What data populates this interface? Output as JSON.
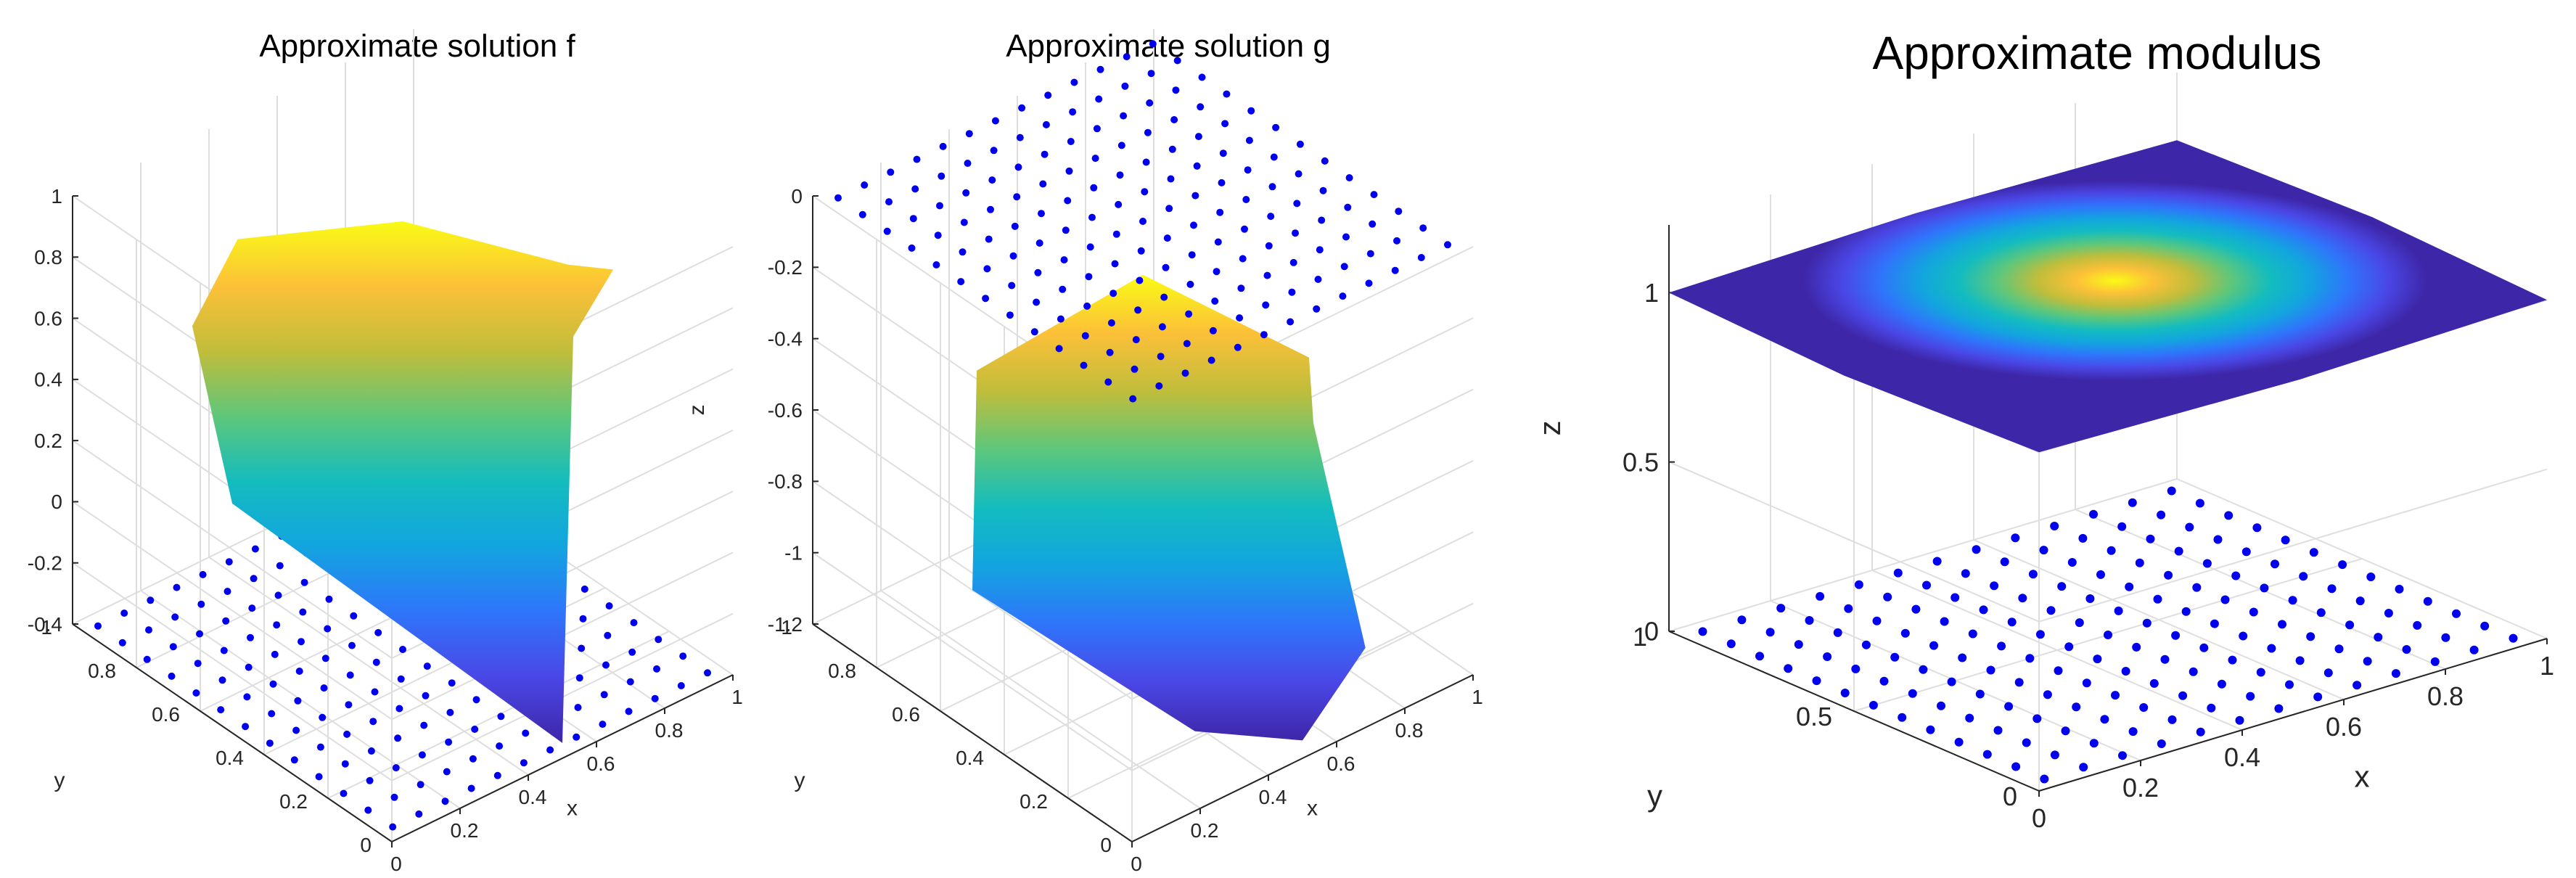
{
  "colors": {
    "marker": "#0000ee",
    "colormap": [
      "#3e26a8",
      "#4a47e6",
      "#2f75fb",
      "#13a4e0",
      "#13bcbf",
      "#5dc77b",
      "#c0bd3b",
      "#fcc038",
      "#f9fb15"
    ],
    "grid": "#dedede",
    "axis": "#262626"
  },
  "chart_data": [
    {
      "type": "surface",
      "title": "Approximate solution f",
      "xlabel": "x",
      "ylabel": "y",
      "zlabel": "z",
      "xlim": [
        0,
        1
      ],
      "ylim": [
        0,
        1
      ],
      "zlim": [
        -0.4,
        1
      ],
      "x_ticks": [
        "0",
        "0.2",
        "0.4",
        "0.6",
        "0.8",
        "1"
      ],
      "y_ticks": [
        "0",
        "0.2",
        "0.4",
        "0.6",
        "0.8",
        "1"
      ],
      "z_ticks": [
        "-0.4",
        "-0.2",
        "0",
        "0.2",
        "0.4",
        "0.6",
        "0.8",
        "1"
      ],
      "surface_boundary": [
        {
          "x": 0.5,
          "y": 0.5,
          "z": 1.0
        },
        {
          "x": 0.75,
          "y": 0.25,
          "z": 0.9
        },
        {
          "x": 0.93,
          "y": 0.3,
          "z": 0.75
        },
        {
          "x": 1.0,
          "y": 0.5,
          "z": 0.35
        },
        {
          "x": 0.5,
          "y": 0.0,
          "z": -0.35
        },
        {
          "x": 0.0,
          "y": 0.5,
          "z": 0.35
        },
        {
          "x": 0.07,
          "y": 0.7,
          "z": 0.75
        },
        {
          "x": 0.25,
          "y": 0.75,
          "z": 0.9
        }
      ],
      "markers_z": -0.4,
      "marker_grid_n": 13,
      "marker_shape": "circular disc",
      "grid": true
    },
    {
      "type": "surface",
      "title": "Approximate solution g",
      "xlabel": "x",
      "ylabel": "y",
      "zlabel": "z",
      "xlim": [
        0,
        1
      ],
      "ylim": [
        0,
        1
      ],
      "zlim": [
        -1.2,
        0
      ],
      "x_ticks": [
        "0",
        "0.2",
        "0.4",
        "0.6",
        "0.8",
        "1"
      ],
      "y_ticks": [
        "0",
        "0.2",
        "0.4",
        "0.6",
        "0.8",
        "1"
      ],
      "z_ticks": [
        "-1.2",
        "-1",
        "-0.8",
        "-0.6",
        "-0.4",
        "-0.2",
        "0"
      ],
      "surface_boundary": [
        {
          "x": 0.5,
          "y": 0.5,
          "z": -0.15
        },
        {
          "x": 0.8,
          "y": 0.3,
          "z": -0.4
        },
        {
          "x": 1.0,
          "y": 0.5,
          "z": -0.8
        },
        {
          "x": 0.75,
          "y": 0.07,
          "z": -1.05
        },
        {
          "x": 0.5,
          "y": 0.0,
          "z": -1.15
        },
        {
          "x": 0.25,
          "y": 0.07,
          "z": -1.05
        },
        {
          "x": 0.0,
          "y": 0.5,
          "z": -0.8
        },
        {
          "x": 0.2,
          "y": 0.7,
          "z": -0.4
        }
      ],
      "markers_z": 0,
      "marker_grid_n": 13,
      "marker_shape": "circular disc",
      "grid": true
    },
    {
      "type": "surface",
      "title": "Approximate modulus",
      "xlabel": "x",
      "ylabel": "y",
      "zlabel": "z",
      "xlim": [
        0,
        1
      ],
      "ylim": [
        0,
        1
      ],
      "zlim": [
        0,
        1.2
      ],
      "x_ticks": [
        "0",
        "0.2",
        "0.4",
        "0.6",
        "0.8",
        "1"
      ],
      "y_ticks": [
        "0",
        "0.5",
        "1"
      ],
      "z_ticks": [
        "0",
        "0.5",
        "1"
      ],
      "surface_z": 1.0,
      "peak_z": 1.0,
      "min_z": 0.85,
      "markers_z": 0,
      "marker_grid_n": 13,
      "marker_shape": "circular disc",
      "grid": true
    }
  ]
}
